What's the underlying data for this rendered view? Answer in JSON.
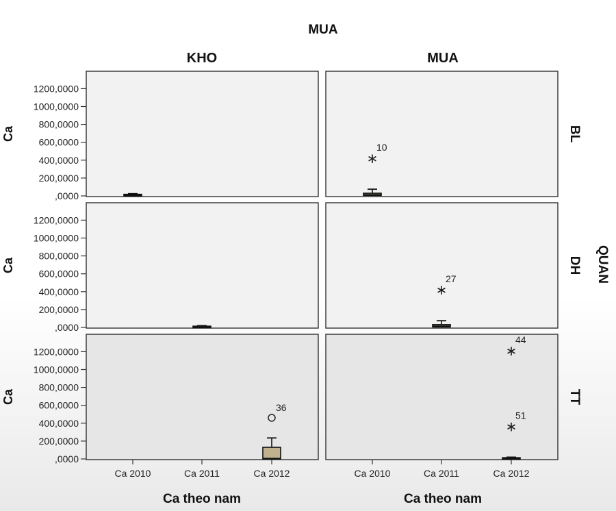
{
  "chart_data": {
    "type": "boxplot",
    "title": "MUA",
    "column_variable_values": [
      "KHO",
      "MUA"
    ],
    "row_variable": "QUAN",
    "row_variable_values": [
      "BL",
      "DH",
      "TT"
    ],
    "ylabel": "Ca",
    "xlabel": "Ca theo nam",
    "categories": [
      "Ca 2010",
      "Ca 2011",
      "Ca 2012"
    ],
    "ylim": [
      0,
      1300
    ],
    "yticks": [
      0,
      200,
      400,
      600,
      800,
      1000,
      1200
    ],
    "ytick_labels": [
      ",0000",
      "200,0000",
      "400,0000",
      "600,0000",
      "800,0000",
      "1000,0000",
      "1200,0000"
    ],
    "box_color": "#bfb28c",
    "panel_color_light": "#f2f2f2",
    "panel_color_dark": "#e6e6e6",
    "panels": [
      {
        "col": "KHO",
        "row": "BL",
        "boxes": [
          {
            "category": "Ca 2010",
            "whisker_low": 0,
            "q1": 5,
            "median": 10,
            "q3": 18,
            "whisker_high": 25
          }
        ],
        "outliers": []
      },
      {
        "col": "MUA",
        "row": "BL",
        "boxes": [
          {
            "category": "Ca 2010",
            "whisker_low": 0,
            "q1": 5,
            "median": 12,
            "q3": 30,
            "whisker_high": 75
          }
        ],
        "outliers": [
          {
            "category": "Ca 2010",
            "value": 430,
            "label": "10",
            "marker": "star"
          }
        ]
      },
      {
        "col": "KHO",
        "row": "DH",
        "boxes": [
          {
            "category": "Ca 2011",
            "whisker_low": 0,
            "q1": 4,
            "median": 8,
            "q3": 14,
            "whisker_high": 20
          }
        ],
        "outliers": []
      },
      {
        "col": "MUA",
        "row": "DH",
        "boxes": [
          {
            "category": "Ca 2011",
            "whisker_low": 0,
            "q1": 5,
            "median": 14,
            "q3": 32,
            "whisker_high": 75
          }
        ],
        "outliers": [
          {
            "category": "Ca 2011",
            "value": 430,
            "label": "27",
            "marker": "star"
          }
        ]
      },
      {
        "col": "KHO",
        "row": "TT",
        "boxes": [
          {
            "category": "Ca 2012",
            "whisker_low": 0,
            "q1": 0,
            "median": 5,
            "q3": 130,
            "whisker_high": 235
          }
        ],
        "outliers": [
          {
            "category": "Ca 2012",
            "value": 460,
            "label": "36",
            "marker": "circle"
          }
        ]
      },
      {
        "col": "MUA",
        "row": "TT",
        "boxes": [
          {
            "category": "Ca 2012",
            "whisker_low": 0,
            "q1": 3,
            "median": 8,
            "q3": 14,
            "whisker_high": 20
          }
        ],
        "outliers": [
          {
            "category": "Ca 2012",
            "value": 1220,
            "label": "44",
            "marker": "star"
          },
          {
            "category": "Ca 2012",
            "value": 370,
            "label": "51",
            "marker": "star"
          }
        ]
      }
    ]
  }
}
